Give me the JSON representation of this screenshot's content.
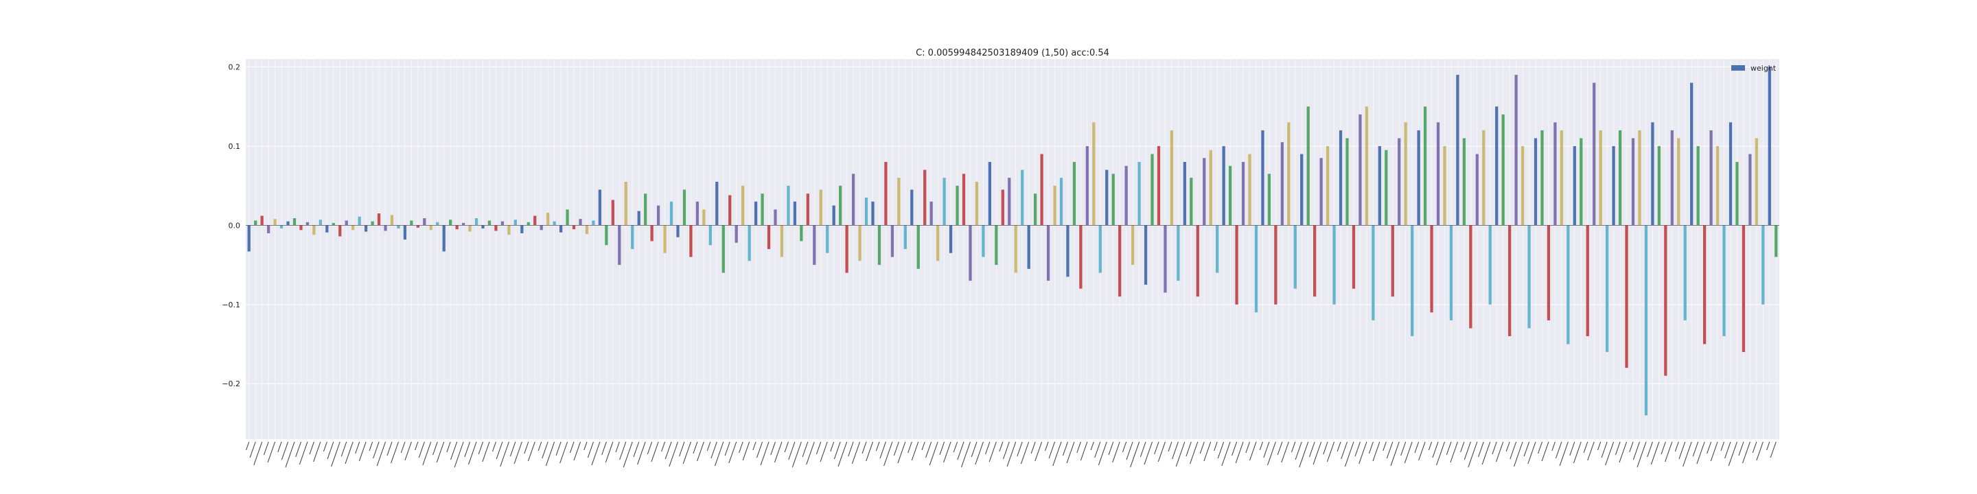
{
  "chart_data": {
    "type": "bar",
    "title": "C: 0.005994842503189409 (1,50) acc:0.54",
    "xlabel": "",
    "ylabel": "",
    "ylim": [
      -0.27,
      0.21
    ],
    "yticks": [
      0.2,
      0.1,
      0.0,
      -0.1,
      -0.2
    ],
    "ytick_labels": [
      "0.2",
      "0.1",
      "0.0",
      "−0.1",
      "−0.2"
    ],
    "grid": true,
    "legend": {
      "position": "top-right",
      "entries": [
        "weight"
      ]
    },
    "palette": [
      "#4c72b0",
      "#55a868",
      "#c44e52",
      "#8172b2",
      "#ccb974",
      "#64b5cd"
    ],
    "background": "#eaeaf2",
    "series": [
      {
        "name": "weight",
        "values": [
          -0.033,
          0.006,
          0.012,
          -0.01,
          0.008,
          -0.004,
          0.005,
          0.009,
          -0.006,
          0.004,
          -0.012,
          0.007,
          -0.009,
          0.003,
          -0.014,
          0.006,
          -0.006,
          0.011,
          -0.008,
          0.005,
          0.015,
          -0.007,
          0.013,
          -0.004,
          -0.018,
          0.006,
          -0.003,
          0.009,
          -0.006,
          0.004,
          -0.033,
          0.007,
          -0.005,
          0.003,
          -0.008,
          0.009,
          -0.004,
          0.006,
          -0.007,
          0.005,
          -0.012,
          0.007,
          -0.01,
          0.004,
          0.012,
          -0.006,
          0.016,
          0.005,
          -0.009,
          0.02,
          -0.005,
          0.008,
          -0.011,
          0.006,
          0.045,
          -0.025,
          0.032,
          -0.05,
          0.055,
          -0.03,
          0.018,
          0.04,
          -0.02,
          0.025,
          -0.035,
          0.03,
          -0.015,
          0.045,
          -0.04,
          0.03,
          0.02,
          -0.025,
          0.055,
          -0.06,
          0.038,
          -0.022,
          0.05,
          -0.045,
          0.03,
          0.04,
          -0.03,
          0.02,
          -0.04,
          0.05,
          0.03,
          -0.02,
          0.04,
          -0.05,
          0.045,
          -0.035,
          0.025,
          0.05,
          -0.06,
          0.065,
          -0.045,
          0.035,
          0.03,
          -0.05,
          0.08,
          -0.04,
          0.06,
          -0.03,
          0.045,
          -0.055,
          0.07,
          0.03,
          -0.045,
          0.06,
          -0.035,
          0.05,
          0.065,
          -0.07,
          0.055,
          -0.04,
          0.08,
          -0.05,
          0.045,
          0.06,
          -0.06,
          0.07,
          -0.055,
          0.04,
          0.09,
          -0.07,
          0.05,
          0.06,
          -0.065,
          0.08,
          -0.08,
          0.1,
          0.13,
          -0.06,
          0.07,
          0.065,
          -0.09,
          0.075,
          -0.05,
          0.08,
          -0.075,
          0.09,
          0.1,
          -0.085,
          0.12,
          -0.07,
          0.08,
          0.06,
          -0.09,
          0.085,
          0.095,
          -0.06,
          0.1,
          0.075,
          -0.1,
          0.08,
          0.09,
          -0.11,
          0.12,
          0.065,
          -0.1,
          0.105,
          0.13,
          -0.08,
          0.09,
          0.15,
          -0.09,
          0.085,
          0.1,
          -0.1,
          0.12,
          0.11,
          -0.08,
          0.14,
          0.15,
          -0.12,
          0.1,
          0.095,
          -0.09,
          0.11,
          0.13,
          -0.14,
          0.12,
          0.15,
          -0.11,
          0.13,
          0.1,
          -0.12,
          0.19,
          0.11,
          -0.13,
          0.09,
          0.12,
          -0.1,
          0.15,
          0.14,
          -0.14,
          0.19,
          0.1,
          -0.13,
          0.11,
          0.12,
          -0.12,
          0.13,
          0.12,
          -0.15,
          0.1,
          0.11,
          -0.14,
          0.18,
          0.12,
          -0.16,
          0.1,
          0.12,
          -0.18,
          0.11,
          0.12,
          -0.24,
          0.13,
          0.1,
          -0.19,
          0.12,
          0.11,
          -0.12,
          0.18,
          0.1,
          -0.15,
          0.12,
          0.1,
          -0.14,
          0.13,
          0.08,
          -0.16,
          0.09,
          0.11,
          -0.1,
          0.2,
          -0.04
        ]
      }
    ]
  }
}
